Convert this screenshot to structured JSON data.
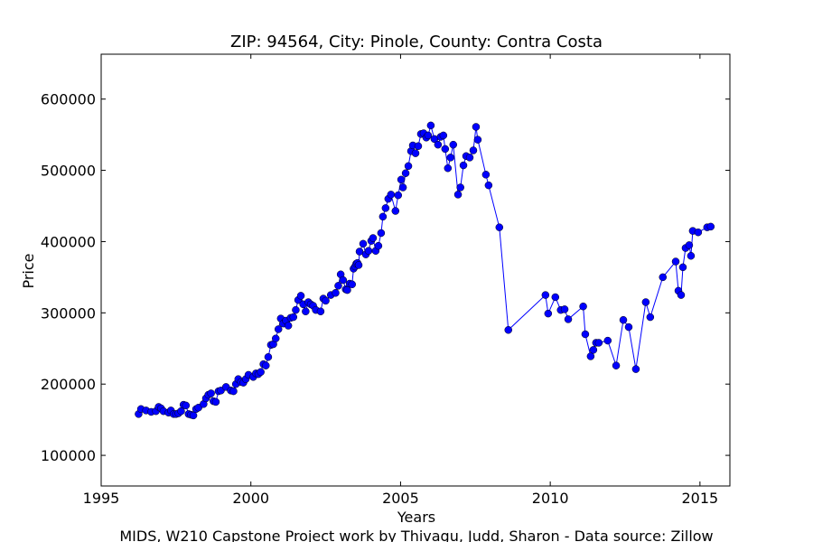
{
  "chart_data": {
    "type": "line",
    "title": "ZIP: 94564, City: Pinole, County: Contra Costa",
    "x_label": "Years",
    "y_label": "Price",
    "footer": "MIDS, W210 Capstone Project work by Thivagu, Judd, Sharon  -  Data source: Zillow",
    "color": "#0000ff",
    "xlim": [
      1995,
      2016
    ],
    "xticks": [
      1995,
      2000,
      2005,
      2010,
      2015
    ],
    "ylim": [
      57000,
      663000
    ],
    "yticks": [
      100000,
      200000,
      300000,
      400000,
      500000,
      600000
    ],
    "x": [
      1996.25,
      1996.33,
      1996.5,
      1996.67,
      1996.83,
      1996.92,
      1997.0,
      1997.08,
      1997.25,
      1997.33,
      1997.42,
      1997.5,
      1997.58,
      1997.67,
      1997.75,
      1997.83,
      1997.92,
      1998.0,
      1998.08,
      1998.17,
      1998.25,
      1998.42,
      1998.5,
      1998.58,
      1998.67,
      1998.75,
      1998.83,
      1998.92,
      1999.0,
      1999.17,
      1999.33,
      1999.42,
      1999.5,
      1999.58,
      1999.67,
      1999.75,
      1999.83,
      1999.92,
      2000.08,
      2000.17,
      2000.25,
      2000.33,
      2000.42,
      2000.5,
      2000.58,
      2000.67,
      2000.75,
      2000.83,
      2000.92,
      2001.0,
      2001.08,
      2001.17,
      2001.25,
      2001.33,
      2001.42,
      2001.5,
      2001.58,
      2001.67,
      2001.75,
      2001.83,
      2001.92,
      2002.0,
      2002.08,
      2002.17,
      2002.33,
      2002.42,
      2002.5,
      2002.67,
      2002.83,
      2002.92,
      2003.0,
      2003.08,
      2003.17,
      2003.22,
      2003.3,
      2003.38,
      2003.43,
      2003.48,
      2003.52,
      2003.56,
      2003.6,
      2003.63,
      2003.75,
      2003.84,
      2003.93,
      2004.02,
      2004.08,
      2004.17,
      2004.26,
      2004.35,
      2004.41,
      2004.5,
      2004.59,
      2004.68,
      2004.83,
      2004.92,
      2005.02,
      2005.08,
      2005.17,
      2005.26,
      2005.35,
      2005.41,
      2005.5,
      2005.59,
      2005.68,
      2005.77,
      2005.86,
      2005.92,
      2006.01,
      2006.13,
      2006.25,
      2006.34,
      2006.43,
      2006.49,
      2006.58,
      2006.67,
      2006.76,
      2006.92,
      2007.0,
      2007.1,
      2007.19,
      2007.31,
      2007.43,
      2007.52,
      2007.58,
      2007.85,
      2007.94,
      2008.3,
      2008.6,
      2009.84,
      2009.93,
      2010.17,
      2010.35,
      2010.48,
      2010.6,
      2011.1,
      2011.17,
      2011.35,
      2011.44,
      2011.53,
      2011.62,
      2011.92,
      2012.2,
      2012.44,
      2012.62,
      2012.86,
      2013.19,
      2013.34,
      2013.76,
      2014.19,
      2014.28,
      2014.37,
      2014.43,
      2014.52,
      2014.64,
      2014.7,
      2014.76,
      2014.94,
      2015.24,
      2015.36
    ],
    "values": [
      158000,
      165000,
      163000,
      161000,
      162000,
      168000,
      166000,
      162000,
      160000,
      163000,
      158000,
      158000,
      159000,
      162000,
      171000,
      170000,
      158000,
      157000,
      156000,
      165000,
      167000,
      172000,
      180000,
      185000,
      187000,
      176000,
      175000,
      190000,
      191000,
      196000,
      191000,
      190000,
      200000,
      207000,
      203000,
      202000,
      207000,
      213000,
      210000,
      215000,
      214000,
      217000,
      228000,
      226000,
      238000,
      255000,
      256000,
      264000,
      277000,
      292000,
      285000,
      289000,
      282000,
      293000,
      294000,
      304000,
      318000,
      324000,
      312000,
      302000,
      315000,
      312000,
      310000,
      304000,
      302000,
      320000,
      317000,
      325000,
      328000,
      338000,
      354000,
      346000,
      333000,
      332000,
      341000,
      340000,
      362000,
      365000,
      369000,
      370000,
      367000,
      386000,
      397000,
      382000,
      387000,
      401000,
      405000,
      387000,
      394000,
      412000,
      435000,
      447000,
      460000,
      466000,
      443000,
      465000,
      487000,
      476000,
      496000,
      506000,
      527000,
      535000,
      524000,
      534000,
      551000,
      552000,
      546000,
      549000,
      563000,
      544000,
      536000,
      547000,
      549000,
      530000,
      503000,
      518000,
      536000,
      466000,
      476000,
      507000,
      520000,
      518000,
      528000,
      561000,
      543000,
      494000,
      479000,
      420000,
      276000,
      325000,
      299000,
      322000,
      304000,
      305000,
      291000,
      309000,
      270000,
      239000,
      248000,
      258000,
      258000,
      261000,
      226000,
      290000,
      280000,
      221000,
      315000,
      294000,
      350000,
      372000,
      331000,
      325000,
      364000,
      391000,
      395000,
      380000,
      415000,
      413000,
      420000,
      421000
    ]
  }
}
